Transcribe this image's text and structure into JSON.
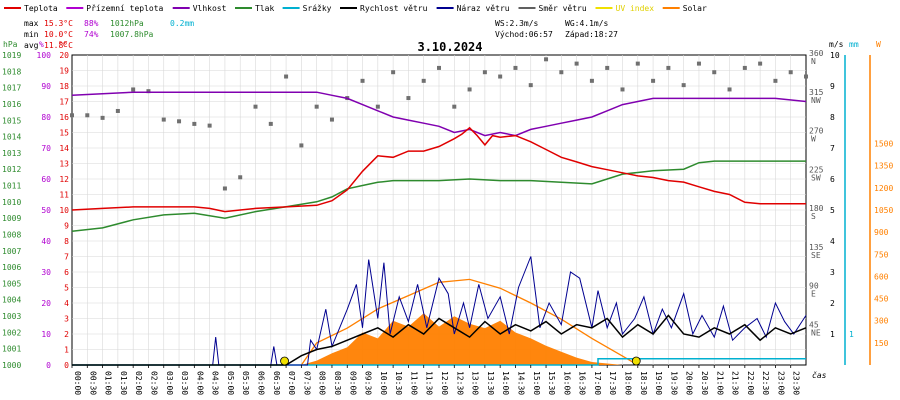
{
  "chart_data": {
    "type": "line",
    "title": "3.10.2024",
    "x_axis_label": "čas",
    "x_ticks": [
      "00:00",
      "00:30",
      "01:00",
      "01:30",
      "02:00",
      "02:30",
      "03:00",
      "03:30",
      "04:00",
      "04:30",
      "05:00",
      "05:30",
      "06:00",
      "06:30",
      "07:00",
      "07:30",
      "08:00",
      "08:30",
      "09:00",
      "09:30",
      "10:00",
      "10:30",
      "11:00",
      "11:30",
      "12:00",
      "12:30",
      "13:00",
      "13:30",
      "14:00",
      "14:30",
      "15:00",
      "15:30",
      "16:00",
      "16:30",
      "17:00",
      "17:30",
      "18:00",
      "18:30",
      "19:00",
      "19:30",
      "20:00",
      "20:30",
      "21:00",
      "21:30",
      "22:00",
      "22:30",
      "23:00",
      "23:30"
    ],
    "legend": [
      {
        "name": "Teplota",
        "color": "#e00000"
      },
      {
        "name": "Přízemní teplota",
        "color": "#b000d0"
      },
      {
        "name": "Vlhkost",
        "color": "#8000b0"
      },
      {
        "name": "Tlak",
        "color": "#2e8b2e"
      },
      {
        "name": "Srážky",
        "color": "#00b0d0"
      },
      {
        "name": "Rychlost větru",
        "color": "#000000"
      },
      {
        "name": "Náraz větru",
        "color": "#000090"
      },
      {
        "name": "Směr větru",
        "color": "#606060"
      },
      {
        "name": "UV index",
        "color": "#f0e000"
      },
      {
        "name": "Solar",
        "color": "#ff8000"
      }
    ],
    "stats": {
      "max_label": "max",
      "max_temp": "15.3°C",
      "max_hum": "88%",
      "max_press": "1012hPa",
      "rain": "0.2mm",
      "min_label": "min",
      "min_temp": "10.0°C",
      "min_hum": "74%",
      "min_press": "1007.8hPa",
      "avg_label": "avg",
      "avg_temp": "11.8°C",
      "ws": "WS:2.3m/s",
      "wg": "WG:4.1m/s",
      "sunrise": "Východ:06:57",
      "sunset": "Západ:18:27"
    },
    "axes": {
      "hpa": {
        "unit": "hPa",
        "color": "#2e8b2e",
        "min": 1000,
        "max": 1019
      },
      "percent": {
        "unit": "%",
        "color": "#b000d0",
        "min": 0,
        "max": 100
      },
      "celsius": {
        "unit": "°C",
        "color": "#e00000",
        "min": 0,
        "max": 20
      },
      "wind_dir": {
        "ticks": [
          {
            "deg": "360",
            "dir": "N"
          },
          {
            "deg": "315",
            "dir": "NW"
          },
          {
            "deg": "270",
            "dir": "W"
          },
          {
            "deg": "225",
            "dir": "SW"
          },
          {
            "deg": "180",
            "dir": "S"
          },
          {
            "deg": "135",
            "dir": "SE"
          },
          {
            "deg": "90",
            "dir": "E"
          },
          {
            "deg": "45",
            "dir": "NE"
          }
        ]
      },
      "ms": {
        "unit": "m/s",
        "min": 0,
        "max": 10
      },
      "mm": {
        "unit": "mm",
        "color": "#00b0d0",
        "min": 0,
        "max": 1
      },
      "solar": {
        "unit": "W",
        "color": "#ff8000",
        "ticks": [
          "1500",
          "1350",
          "1200",
          "1050",
          "900",
          "750",
          "600",
          "450",
          "300",
          "150"
        ]
      }
    },
    "series": {
      "temperature_c": [
        [
          0,
          10.0
        ],
        [
          1,
          10.1
        ],
        [
          2,
          10.2
        ],
        [
          3,
          10.2
        ],
        [
          4,
          10.2
        ],
        [
          4.5,
          10.1
        ],
        [
          5,
          9.9
        ],
        [
          5.5,
          10.0
        ],
        [
          6,
          10.1
        ],
        [
          7,
          10.2
        ],
        [
          8,
          10.3
        ],
        [
          8.5,
          10.6
        ],
        [
          9,
          11.3
        ],
        [
          9.5,
          12.5
        ],
        [
          10,
          13.5
        ],
        [
          10.5,
          13.4
        ],
        [
          11,
          13.8
        ],
        [
          11.5,
          13.8
        ],
        [
          12,
          14.1
        ],
        [
          12.5,
          14.6
        ],
        [
          12.75,
          14.9
        ],
        [
          13,
          15.3
        ],
        [
          13.25,
          14.8
        ],
        [
          13.5,
          14.2
        ],
        [
          13.75,
          14.8
        ],
        [
          14,
          14.7
        ],
        [
          14.5,
          14.8
        ],
        [
          15,
          14.4
        ],
        [
          15.5,
          13.9
        ],
        [
          16,
          13.4
        ],
        [
          16.5,
          13.1
        ],
        [
          17,
          12.8
        ],
        [
          17.5,
          12.6
        ],
        [
          18,
          12.4
        ],
        [
          18.5,
          12.2
        ],
        [
          19,
          12.1
        ],
        [
          19.5,
          11.9
        ],
        [
          20,
          11.8
        ],
        [
          20.5,
          11.5
        ],
        [
          21,
          11.2
        ],
        [
          21.5,
          11.0
        ],
        [
          22,
          10.5
        ],
        [
          22.5,
          10.4
        ],
        [
          23,
          10.4
        ],
        [
          24,
          10.4
        ]
      ],
      "humidity_pct": [
        [
          0,
          87
        ],
        [
          2,
          88
        ],
        [
          4,
          88
        ],
        [
          6,
          88
        ],
        [
          8,
          88
        ],
        [
          8.5,
          87
        ],
        [
          9,
          86
        ],
        [
          9.5,
          84
        ],
        [
          10,
          82
        ],
        [
          10.5,
          80
        ],
        [
          11,
          79
        ],
        [
          11.5,
          78
        ],
        [
          12,
          77
        ],
        [
          12.5,
          75
        ],
        [
          13,
          76
        ],
        [
          13.5,
          74
        ],
        [
          14,
          75
        ],
        [
          14.5,
          74
        ],
        [
          15,
          76
        ],
        [
          15.5,
          77
        ],
        [
          16,
          78
        ],
        [
          16.5,
          79
        ],
        [
          17,
          80
        ],
        [
          17.5,
          82
        ],
        [
          18,
          84
        ],
        [
          18.5,
          85
        ],
        [
          19,
          86
        ],
        [
          20,
          86
        ],
        [
          21,
          86
        ],
        [
          22,
          86
        ],
        [
          23,
          86
        ],
        [
          24,
          85
        ]
      ],
      "pressure_hpa": [
        [
          0,
          1008.2
        ],
        [
          1,
          1008.4
        ],
        [
          2,
          1008.9
        ],
        [
          3,
          1009.2
        ],
        [
          4,
          1009.3
        ],
        [
          5,
          1009.0
        ],
        [
          6,
          1009.4
        ],
        [
          7,
          1009.7
        ],
        [
          8,
          1010.0
        ],
        [
          8.5,
          1010.3
        ],
        [
          9,
          1010.8
        ],
        [
          9.5,
          1011.0
        ],
        [
          10,
          1011.2
        ],
        [
          10.5,
          1011.3
        ],
        [
          11,
          1011.3
        ],
        [
          12,
          1011.3
        ],
        [
          13,
          1011.4
        ],
        [
          14,
          1011.3
        ],
        [
          15,
          1011.3
        ],
        [
          16,
          1011.2
        ],
        [
          17,
          1011.1
        ],
        [
          17.5,
          1011.4
        ],
        [
          18,
          1011.7
        ],
        [
          18.5,
          1011.8
        ],
        [
          19,
          1011.9
        ],
        [
          20,
          1012.0
        ],
        [
          20.5,
          1012.4
        ],
        [
          21,
          1012.5
        ],
        [
          22,
          1012.5
        ],
        [
          23,
          1012.5
        ],
        [
          24,
          1012.5
        ]
      ],
      "rain_mm": [
        [
          0,
          0
        ],
        [
          17.2,
          0
        ],
        [
          17.2,
          0.2
        ],
        [
          24,
          0.2
        ]
      ],
      "solar_cap_w": [
        [
          7.5,
          0
        ],
        [
          8,
          150
        ],
        [
          9,
          250
        ],
        [
          10,
          380
        ],
        [
          11,
          470
        ],
        [
          12,
          560
        ],
        [
          12.5,
          570
        ],
        [
          13,
          580
        ],
        [
          14,
          520
        ],
        [
          15,
          420
        ],
        [
          16,
          310
        ],
        [
          17,
          180
        ],
        [
          18,
          60
        ],
        [
          18.5,
          0
        ]
      ],
      "solar_w": [
        [
          7.5,
          0
        ],
        [
          8,
          30
        ],
        [
          8.5,
          80
        ],
        [
          9,
          120
        ],
        [
          9.5,
          220
        ],
        [
          10,
          180
        ],
        [
          10.5,
          300
        ],
        [
          11,
          260
        ],
        [
          11.5,
          350
        ],
        [
          12,
          260
        ],
        [
          12.5,
          330
        ],
        [
          13,
          280
        ],
        [
          13.5,
          250
        ],
        [
          14,
          300
        ],
        [
          14.5,
          220
        ],
        [
          15,
          180
        ],
        [
          15.5,
          130
        ],
        [
          16,
          90
        ],
        [
          16.5,
          50
        ],
        [
          17,
          20
        ],
        [
          18,
          0
        ]
      ],
      "wind_speed_ms": [
        [
          0,
          0
        ],
        [
          7,
          0
        ],
        [
          7.5,
          0.3
        ],
        [
          8,
          0.5
        ],
        [
          8.5,
          0.6
        ],
        [
          9,
          0.8
        ],
        [
          9.5,
          1.0
        ],
        [
          10,
          1.2
        ],
        [
          10.5,
          0.9
        ],
        [
          11,
          1.3
        ],
        [
          11.5,
          1.0
        ],
        [
          12,
          1.5
        ],
        [
          12.5,
          1.2
        ],
        [
          13,
          0.9
        ],
        [
          13.5,
          1.4
        ],
        [
          14,
          1.0
        ],
        [
          14.5,
          1.3
        ],
        [
          15,
          1.1
        ],
        [
          15.5,
          1.4
        ],
        [
          16,
          1.0
        ],
        [
          16.5,
          1.3
        ],
        [
          17,
          1.2
        ],
        [
          17.5,
          1.5
        ],
        [
          18,
          0.9
        ],
        [
          18.5,
          1.3
        ],
        [
          19,
          1.0
        ],
        [
          19.5,
          1.6
        ],
        [
          20,
          1.0
        ],
        [
          20.5,
          0.9
        ],
        [
          21,
          1.2
        ],
        [
          21.5,
          1.0
        ],
        [
          22,
          1.3
        ],
        [
          22.5,
          0.8
        ],
        [
          23,
          1.2
        ],
        [
          23.5,
          1.0
        ],
        [
          24,
          1.2
        ]
      ],
      "wind_gust_ms": [
        [
          0,
          0
        ],
        [
          4.6,
          0
        ],
        [
          4.7,
          0.9
        ],
        [
          4.8,
          0
        ],
        [
          6.5,
          0
        ],
        [
          6.6,
          0.6
        ],
        [
          6.7,
          0
        ],
        [
          7.7,
          0
        ],
        [
          7.8,
          0.8
        ],
        [
          8,
          0.5
        ],
        [
          8.3,
          1.8
        ],
        [
          8.5,
          0.6
        ],
        [
          9,
          1.8
        ],
        [
          9.3,
          2.6
        ],
        [
          9.5,
          1.2
        ],
        [
          9.7,
          3.4
        ],
        [
          10,
          1.5
        ],
        [
          10.2,
          3.3
        ],
        [
          10.4,
          1.0
        ],
        [
          10.7,
          2.2
        ],
        [
          11,
          1.4
        ],
        [
          11.3,
          2.6
        ],
        [
          11.6,
          1.2
        ],
        [
          12,
          2.8
        ],
        [
          12.3,
          2.3
        ],
        [
          12.5,
          1.0
        ],
        [
          12.8,
          2.0
        ],
        [
          13,
          1.2
        ],
        [
          13.3,
          2.6
        ],
        [
          13.6,
          1.5
        ],
        [
          14,
          2.2
        ],
        [
          14.3,
          1.0
        ],
        [
          14.6,
          2.5
        ],
        [
          15,
          3.5
        ],
        [
          15.3,
          1.2
        ],
        [
          15.6,
          2.0
        ],
        [
          16,
          1.3
        ],
        [
          16.3,
          3.0
        ],
        [
          16.6,
          2.8
        ],
        [
          17,
          1.2
        ],
        [
          17.2,
          2.4
        ],
        [
          17.5,
          1.2
        ],
        [
          17.8,
          2.0
        ],
        [
          18,
          1.0
        ],
        [
          18.4,
          1.5
        ],
        [
          18.7,
          2.2
        ],
        [
          19,
          1.0
        ],
        [
          19.3,
          1.8
        ],
        [
          19.6,
          1.2
        ],
        [
          20,
          2.3
        ],
        [
          20.3,
          1.0
        ],
        [
          20.6,
          1.6
        ],
        [
          21,
          0.9
        ],
        [
          21.3,
          1.9
        ],
        [
          21.6,
          0.8
        ],
        [
          22,
          1.2
        ],
        [
          22.4,
          1.5
        ],
        [
          22.7,
          0.9
        ],
        [
          23,
          2.0
        ],
        [
          23.3,
          1.4
        ],
        [
          23.6,
          1.0
        ],
        [
          24,
          1.6
        ]
      ],
      "wind_dir_deg": [
        [
          0,
          290
        ],
        [
          0.5,
          290
        ],
        [
          1,
          287
        ],
        [
          1.5,
          295
        ],
        [
          2,
          320
        ],
        [
          2.5,
          318
        ],
        [
          3,
          285
        ],
        [
          3.5,
          283
        ],
        [
          4,
          280
        ],
        [
          4.5,
          278
        ],
        [
          5,
          205
        ],
        [
          5.5,
          218
        ],
        [
          6,
          300
        ],
        [
          6.5,
          280
        ],
        [
          7,
          335
        ],
        [
          7.5,
          255
        ],
        [
          8,
          300
        ],
        [
          8.5,
          285
        ],
        [
          9,
          310
        ],
        [
          9.5,
          330
        ],
        [
          10,
          300
        ],
        [
          10.5,
          340
        ],
        [
          11,
          310
        ],
        [
          11.5,
          330
        ],
        [
          12,
          345
        ],
        [
          12.5,
          300
        ],
        [
          13,
          320
        ],
        [
          13.5,
          340
        ],
        [
          14,
          335
        ],
        [
          14.5,
          345
        ],
        [
          15,
          325
        ],
        [
          15.5,
          355
        ],
        [
          16,
          340
        ],
        [
          16.5,
          350
        ],
        [
          17,
          330
        ],
        [
          17.5,
          345
        ],
        [
          18,
          320
        ],
        [
          18.5,
          350
        ],
        [
          19,
          330
        ],
        [
          19.5,
          345
        ],
        [
          20,
          325
        ],
        [
          20.5,
          350
        ],
        [
          21,
          340
        ],
        [
          21.5,
          320
        ],
        [
          22,
          345
        ],
        [
          22.5,
          350
        ],
        [
          23,
          330
        ],
        [
          23.5,
          340
        ],
        [
          24,
          335
        ]
      ]
    }
  }
}
